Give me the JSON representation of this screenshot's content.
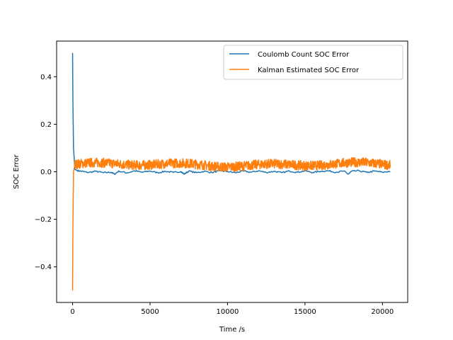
{
  "chart_data": {
    "type": "line",
    "xlabel": "Time /s",
    "ylabel": "SOC Error",
    "xlim": [
      -1030,
      21630
    ],
    "ylim": [
      -0.55,
      0.55
    ],
    "x_ticks": [
      0,
      5000,
      10000,
      15000,
      20000
    ],
    "x_tick_labels": [
      "0",
      "5000",
      "10000",
      "15000",
      "20000"
    ],
    "y_ticks": [
      -0.4,
      -0.2,
      0.0,
      0.2,
      0.4
    ],
    "y_tick_labels": [
      "−0.4",
      "−0.2",
      "0.0",
      "0.2",
      "0.4"
    ],
    "grid": false,
    "legend_position": "top-right",
    "series": [
      {
        "name": "Coulomb Count SOC Error",
        "color": "#1f77b4",
        "x": [
          0,
          20,
          60,
          150,
          300,
          600,
          1000,
          1500,
          2000,
          2500,
          2700,
          3000,
          3500,
          4000,
          4500,
          5000,
          5500,
          6000,
          6500,
          7000,
          7200,
          7500,
          8000,
          8500,
          9000,
          9500,
          10000,
          10500,
          11000,
          11500,
          12000,
          12500,
          13000,
          13500,
          14000,
          14500,
          15000,
          15500,
          16000,
          16500,
          17000,
          17500,
          17800,
          18000,
          18500,
          19000,
          19500,
          20000,
          20500
        ],
        "y": [
          0.5,
          0.3,
          0.1,
          0.01,
          0.005,
          0.002,
          -0.003,
          0.002,
          -0.004,
          -0.002,
          -0.01,
          0.003,
          -0.005,
          0.004,
          -0.002,
          0.003,
          -0.004,
          0.002,
          -0.003,
          0.001,
          -0.01,
          0.003,
          -0.004,
          0.002,
          -0.003,
          0.004,
          0.001,
          -0.004,
          0.003,
          -0.002,
          0.004,
          -0.003,
          0.002,
          -0.004,
          0.003,
          -0.002,
          0.004,
          -0.003,
          0.002,
          0.004,
          -0.002,
          0.003,
          -0.01,
          0.002,
          0.004,
          -0.003,
          0.003,
          -0.002,
          0.002
        ]
      },
      {
        "name": "Kalman Estimated SOC Error",
        "color": "#ff7f0e",
        "x": [
          0,
          20,
          60,
          150
        ],
        "y": [
          -0.5,
          -0.25,
          0.0,
          0.03
        ],
        "noise_band": {
          "x_start": 150,
          "x_end": 20500,
          "center": 0.03,
          "half_range": 0.03
        }
      }
    ]
  }
}
